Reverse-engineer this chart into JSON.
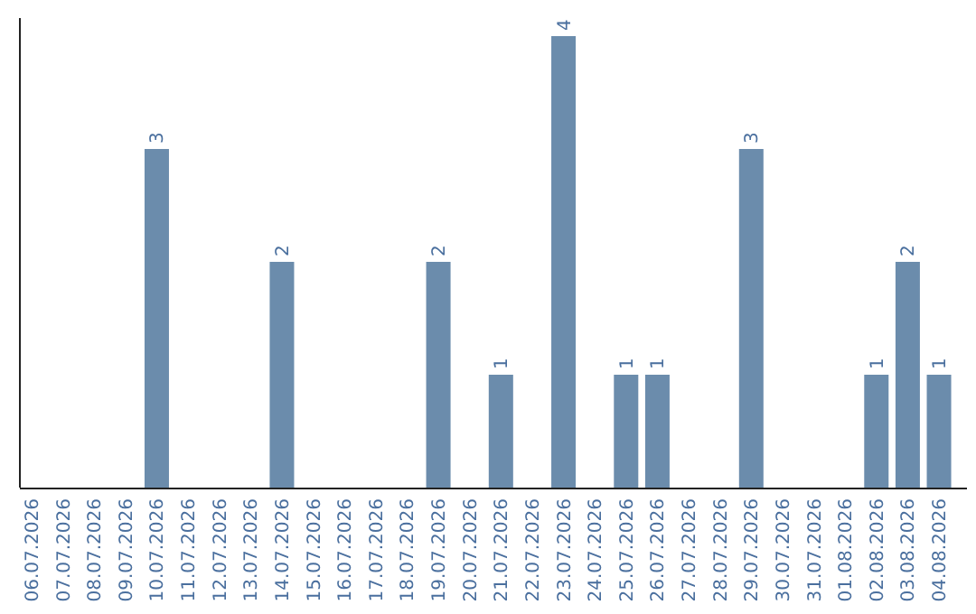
{
  "chart_data": {
    "type": "bar",
    "categories": [
      "06.07.2026",
      "07.07.2026",
      "08.07.2026",
      "09.07.2026",
      "10.07.2026",
      "11.07.2026",
      "12.07.2026",
      "13.07.2026",
      "14.07.2026",
      "15.07.2026",
      "16.07.2026",
      "17.07.2026",
      "18.07.2026",
      "19.07.2026",
      "20.07.2026",
      "21.07.2026",
      "22.07.2026",
      "23.07.2026",
      "24.07.2026",
      "25.07.2026",
      "26.07.2026",
      "27.07.2026",
      "28.07.2026",
      "29.07.2026",
      "30.07.2026",
      "31.07.2026",
      "01.08.2026",
      "02.08.2026",
      "03.08.2026",
      "04.08.2026"
    ],
    "values": [
      0,
      0,
      0,
      0,
      3,
      0,
      0,
      0,
      2,
      0,
      0,
      0,
      0,
      2,
      0,
      1,
      0,
      4,
      0,
      1,
      1,
      0,
      0,
      3,
      0,
      0,
      0,
      1,
      2,
      1
    ],
    "value_labels": [
      null,
      null,
      null,
      null,
      "3",
      null,
      null,
      null,
      "2",
      null,
      null,
      null,
      null,
      "2",
      null,
      "1",
      null,
      "4",
      null,
      "1",
      "1",
      null,
      null,
      "3",
      null,
      null,
      null,
      "1",
      "2",
      "1"
    ],
    "color": "#6b8cac",
    "tick_labels": "x"
  }
}
